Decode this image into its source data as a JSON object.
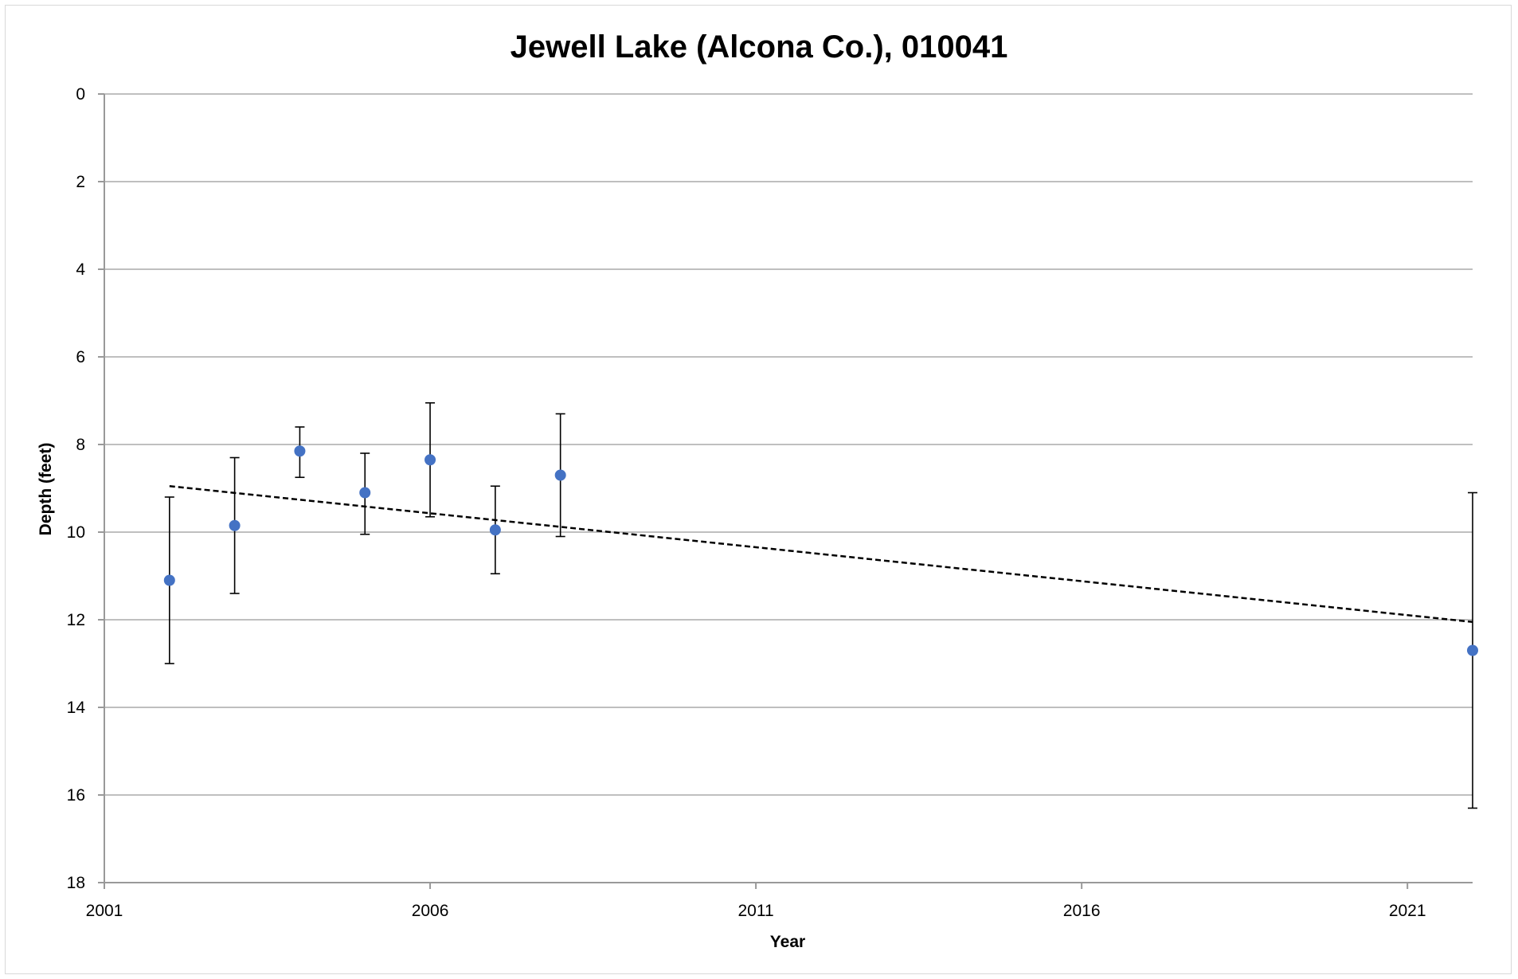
{
  "chart_data": {
    "type": "scatter",
    "title": "Jewell Lake (Alcona Co.), 010041",
    "xlabel": "Year",
    "ylabel": "Depth (feet)",
    "xlim": [
      2001,
      2022
    ],
    "ylim": [
      0,
      18
    ],
    "y_reversed": true,
    "x_ticks": [
      2001,
      2006,
      2011,
      2016,
      2021
    ],
    "y_ticks": [
      0,
      2,
      4,
      6,
      8,
      10,
      12,
      14,
      16,
      18
    ],
    "grid": "horizontal",
    "legend": "none",
    "marker_color": "#4472c4",
    "points": [
      {
        "x": 2002,
        "y": 11.1,
        "err_low": 9.2,
        "err_high": 13.0
      },
      {
        "x": 2003,
        "y": 9.85,
        "err_low": 8.3,
        "err_high": 11.4
      },
      {
        "x": 2004,
        "y": 8.15,
        "err_low": 7.6,
        "err_high": 8.75
      },
      {
        "x": 2005,
        "y": 9.1,
        "err_low": 8.2,
        "err_high": 10.05
      },
      {
        "x": 2006,
        "y": 8.35,
        "err_low": 7.05,
        "err_high": 9.65
      },
      {
        "x": 2007,
        "y": 9.95,
        "err_low": 8.95,
        "err_high": 10.95
      },
      {
        "x": 2008,
        "y": 8.7,
        "err_low": 7.3,
        "err_high": 10.1
      },
      {
        "x": 2022,
        "y": 12.7,
        "err_low": 9.1,
        "err_high": 16.3
      }
    ],
    "trendline": {
      "style": "dotted",
      "color": "#000000",
      "x": [
        2002,
        2022
      ],
      "y": [
        8.95,
        12.05
      ]
    }
  }
}
